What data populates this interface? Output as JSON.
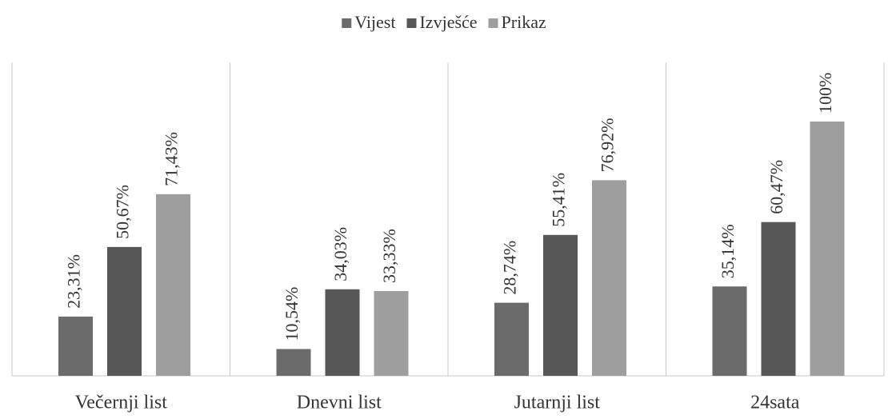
{
  "chart_data": {
    "type": "bar",
    "categories": [
      "Večernji list",
      "Dnevni list",
      "Jutarnji list",
      "24sata"
    ],
    "series": [
      {
        "name": "Vijest",
        "color": "#6b6b6b",
        "values": [
          23.31,
          10.54,
          28.74,
          35.14
        ],
        "value_labels": [
          "23,31%",
          "10,54%",
          "28,74%",
          "35,14%"
        ]
      },
      {
        "name": "Izvješće",
        "color": "#575757",
        "values": [
          50.67,
          34.03,
          55.41,
          60.47
        ],
        "value_labels": [
          "50,67%",
          "34,03%",
          "55,41%",
          "60,47%"
        ]
      },
      {
        "name": "Prikaz",
        "color": "#9e9e9e",
        "values": [
          71.43,
          33.33,
          76.92,
          100
        ],
        "value_labels": [
          "71,43%",
          "33,33%",
          "76,92%",
          "100%"
        ]
      }
    ],
    "legend": "top"
  }
}
